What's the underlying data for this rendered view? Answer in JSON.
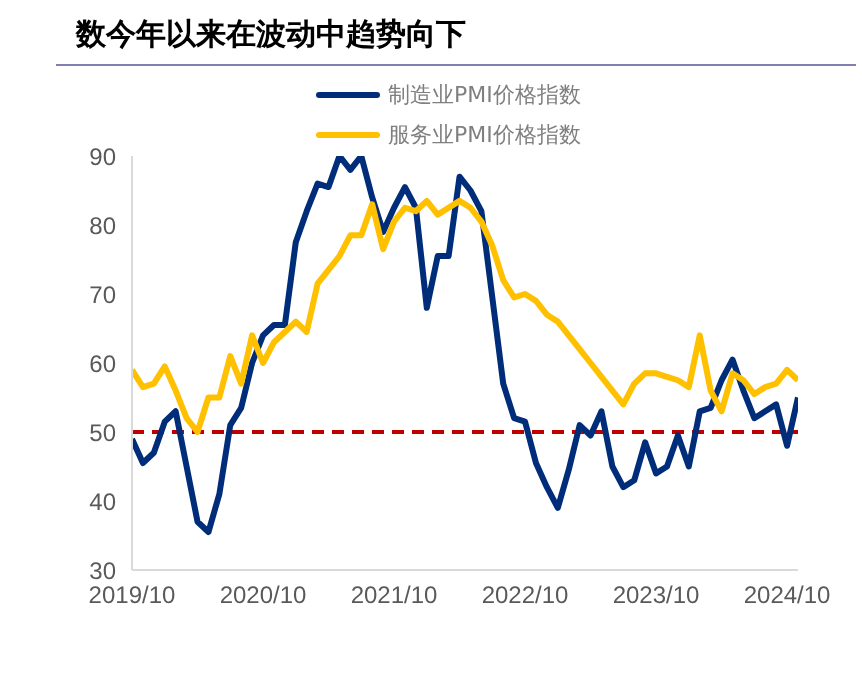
{
  "chart_data": {
    "type": "line",
    "title": "数今年以来在波动中趋势向下",
    "x": [
      "2019-10",
      "2019-11",
      "2019-12",
      "2020-01",
      "2020-02",
      "2020-03",
      "2020-04",
      "2020-05",
      "2020-06",
      "2020-07",
      "2020-08",
      "2020-09",
      "2020-10",
      "2020-11",
      "2020-12",
      "2021-01",
      "2021-02",
      "2021-03",
      "2021-04",
      "2021-05",
      "2021-06",
      "2021-07",
      "2021-08",
      "2021-09",
      "2021-10",
      "2021-11",
      "2021-12",
      "2022-01",
      "2022-02",
      "2022-03",
      "2022-04",
      "2022-05",
      "2022-06",
      "2022-07",
      "2022-08",
      "2022-09",
      "2022-10",
      "2022-11",
      "2022-12",
      "2023-01",
      "2023-02",
      "2023-03",
      "2023-04",
      "2023-05",
      "2023-06",
      "2023-07",
      "2023-08",
      "2023-09",
      "2023-10",
      "2023-11",
      "2023-12",
      "2024-01",
      "2024-02",
      "2024-03",
      "2024-04",
      "2024-05",
      "2024-06",
      "2024-07",
      "2024-08",
      "2024-09",
      "2024-10",
      "2024-11"
    ],
    "series": [
      {
        "name": "制造业PMI价格指数",
        "color": "#002d7a",
        "values": [
          49,
          45.5,
          47,
          51.5,
          53,
          45,
          37,
          35.5,
          41,
          51,
          53.5,
          60,
          64,
          65.5,
          65.5,
          77.5,
          82,
          86,
          85.5,
          90,
          88,
          90,
          84,
          79,
          82.5,
          85.5,
          82.5,
          68,
          75.5,
          75.5,
          87,
          85,
          82,
          69.5,
          57,
          52,
          51.5,
          45.5,
          42,
          39,
          44.5,
          51,
          49.5,
          53,
          45,
          42,
          43,
          48.5,
          44,
          45,
          49.5,
          45,
          53,
          53.5,
          57.5,
          60.5,
          56,
          52,
          53,
          54,
          48,
          55
        ]
      },
      {
        "name": "服务业PMI价格指数",
        "color": "#ffc000",
        "values": [
          59,
          56.5,
          57,
          59.5,
          56,
          52,
          50,
          55,
          55,
          61,
          57,
          64,
          60,
          63,
          64.5,
          66,
          64.5,
          71.5,
          73.5,
          75.5,
          78.5,
          78.5,
          83,
          76.5,
          80.5,
          82.5,
          82,
          83.5,
          81.5,
          82.5,
          83.5,
          82.5,
          80.5,
          77,
          72,
          69.5,
          70,
          69,
          67,
          66,
          64,
          62,
          60,
          58,
          56,
          54,
          57,
          58.5,
          58.5,
          58,
          57.5,
          56.5,
          64,
          56,
          53,
          58.5,
          57.5,
          55.5,
          56.5,
          57,
          59,
          57.5
        ]
      }
    ],
    "xlim": [
      "2019-10",
      "2024-11"
    ],
    "xticks": [
      {
        "value": "2019-10",
        "label": "2019/10"
      },
      {
        "value": "2020-10",
        "label": "2020/10"
      },
      {
        "value": "2021-10",
        "label": "2021/10"
      },
      {
        "value": "2022-10",
        "label": "2022/10"
      },
      {
        "value": "2023-10",
        "label": "2023/10"
      },
      {
        "value": "2024-10",
        "label": "2024/10"
      }
    ],
    "ylim": [
      30,
      90
    ],
    "yticks": [
      30,
      40,
      50,
      60,
      70,
      80,
      90
    ],
    "ref_lines": [
      {
        "axis": "y",
        "value": 50,
        "color": "#c00000",
        "line_style": "dashed"
      }
    ],
    "legend": "top",
    "grid": false,
    "marker": "none",
    "line_style": "solid"
  }
}
